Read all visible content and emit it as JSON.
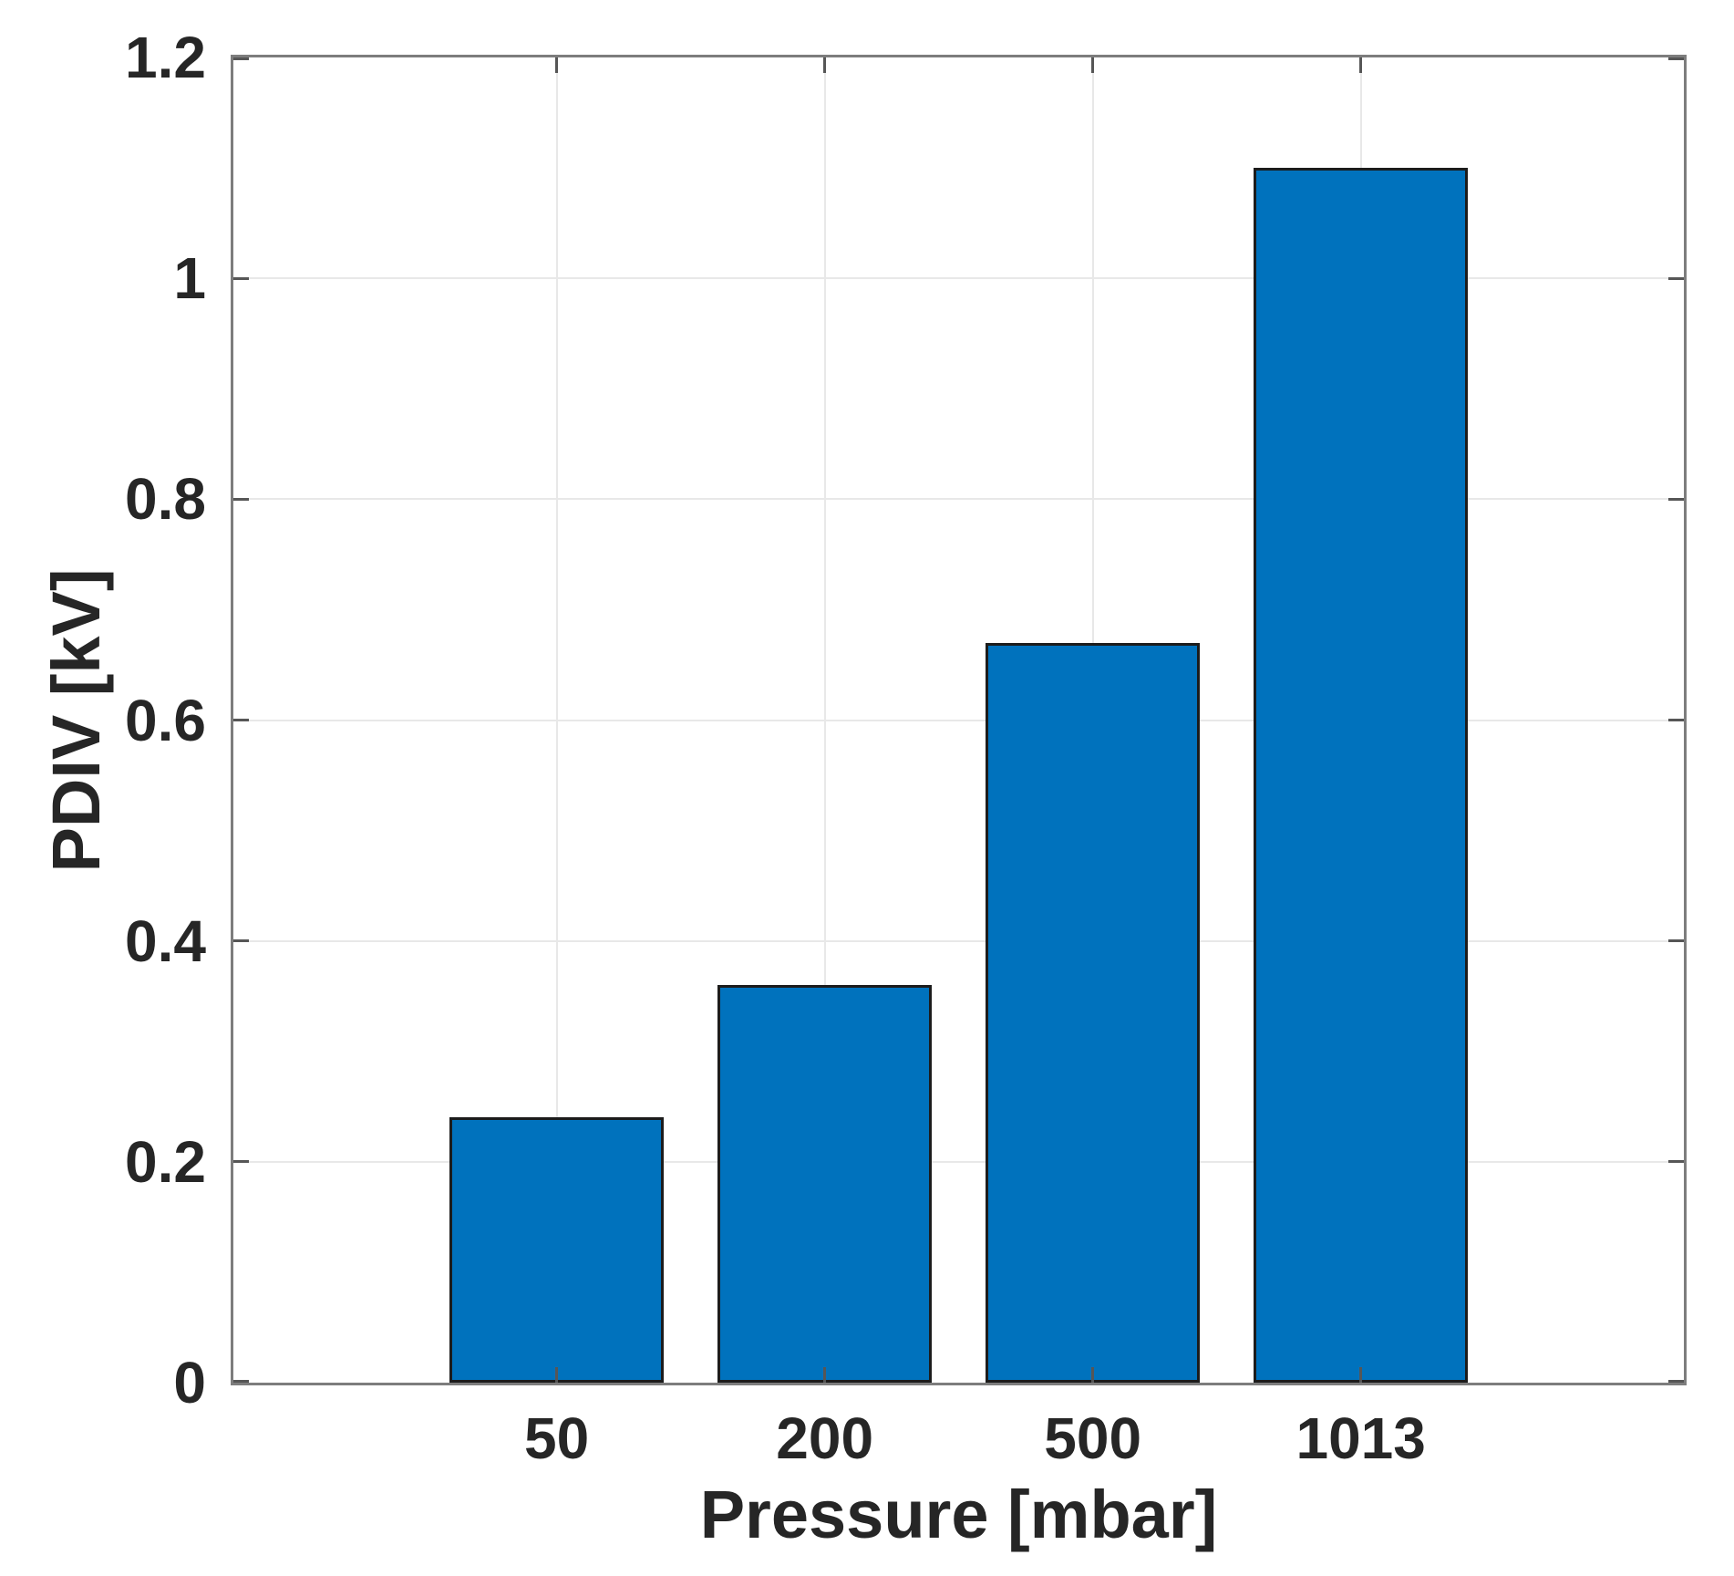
{
  "chart_data": {
    "type": "bar",
    "categories": [
      "50",
      "200",
      "500",
      "1013"
    ],
    "values": [
      0.24,
      0.36,
      0.67,
      1.1
    ],
    "series_name": "PDIV",
    "title": "",
    "xlabel": "Pressure [mbar]",
    "ylabel": "PDIV [kV]",
    "ylim": [
      0,
      1.2
    ],
    "yticks": [
      0,
      0.2,
      0.4,
      0.6,
      0.8,
      1,
      1.2
    ],
    "ytick_labels": [
      "0",
      "0.2",
      "0.4",
      "0.6",
      "0.8",
      "1",
      "1.2"
    ],
    "grid": "on",
    "legend_position": "none",
    "bar_width_fraction": 0.8,
    "colors": {
      "bar_fill": "#0072BD",
      "bar_edge": "#1c1c1c",
      "grid": "#e8e8e8",
      "axis_box": "#7d7d7d",
      "tick_mark": "#565656",
      "text": "#262626",
      "background": "#ffffff"
    }
  }
}
